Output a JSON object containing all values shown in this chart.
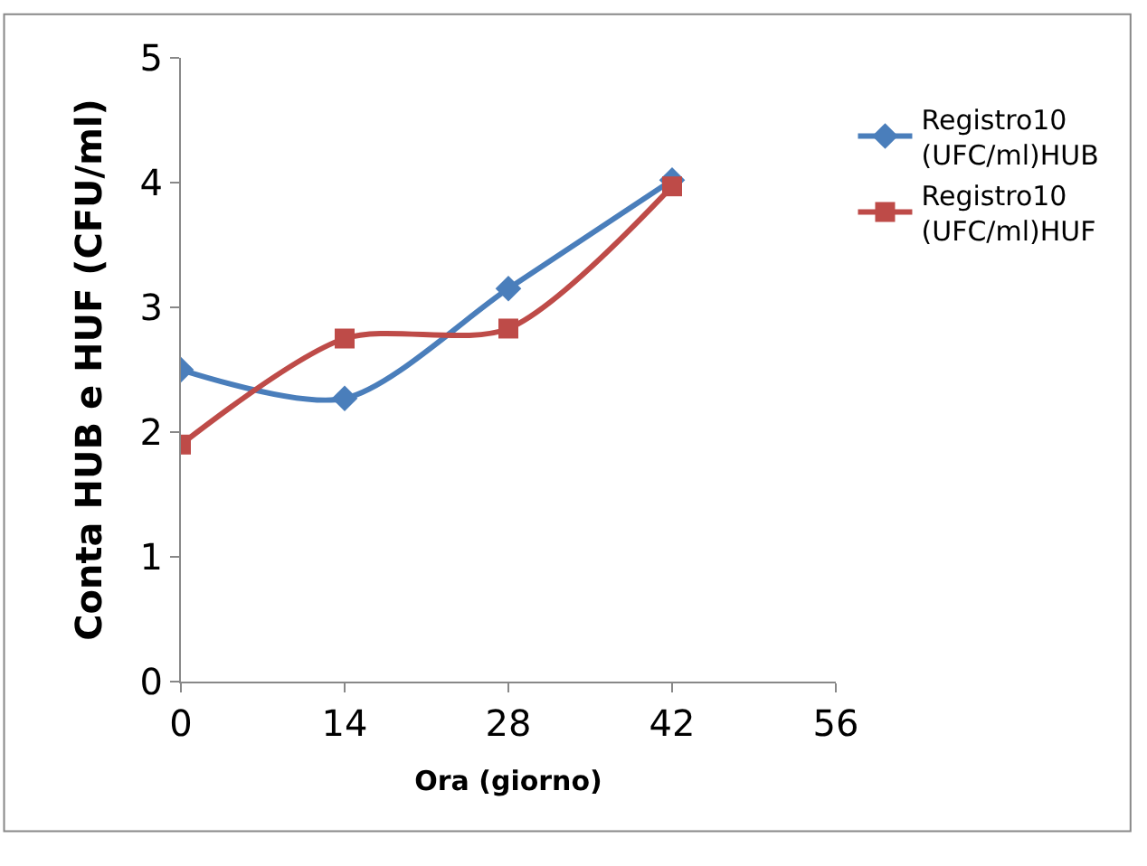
{
  "chart_data": {
    "type": "line",
    "xlabel": "Ora (giorno)",
    "ylabel": "Conta HUB e HUF (CFU/ml)",
    "x": [
      0,
      14,
      28,
      42
    ],
    "xlim": [
      0,
      56
    ],
    "xticks": [
      0,
      14,
      28,
      42,
      56
    ],
    "ylim": [
      0,
      5
    ],
    "yticks": [
      0,
      1,
      2,
      3,
      4,
      5
    ],
    "legend": "right",
    "line_style": "solid",
    "series": [
      {
        "name": "Registro10 (UFC/ml)HUB",
        "color": "#4a7ebb",
        "marker": "diamond",
        "values": [
          2.5,
          2.27,
          3.15,
          4.02
        ]
      },
      {
        "name": "Registro10 (UFC/ml)HUF",
        "color": "#be4b48",
        "marker": "square",
        "values": [
          1.9,
          2.75,
          2.83,
          3.97
        ]
      }
    ]
  }
}
